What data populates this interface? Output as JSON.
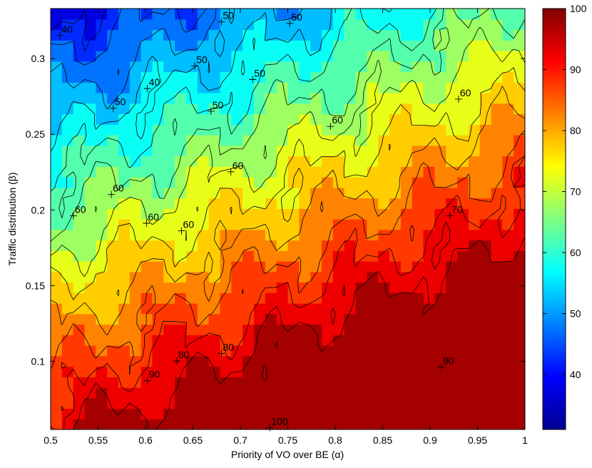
{
  "chart_data": {
    "type": "heatmap",
    "subtype": "filled-contour",
    "colormap": "jet",
    "xlabel": "Priority of VO over BE (α)",
    "ylabel": "Traffic distribution (β)",
    "xlim": [
      0.5,
      1.0
    ],
    "ylim": [
      0.055,
      0.333
    ],
    "x_ticks": [
      "0.5",
      "0.55",
      "0.6",
      "0.65",
      "0.7",
      "0.75",
      "0.8",
      "0.85",
      "0.9",
      "0.95",
      "1"
    ],
    "y_ticks": [
      "0.1",
      "0.15",
      "0.2",
      "0.25",
      "0.3"
    ],
    "colorbar": {
      "min": 31,
      "max": 100,
      "ticks": [
        "40",
        "50",
        "60",
        "70",
        "80",
        "90",
        "100"
      ]
    },
    "contour_levels": [
      35,
      40,
      45,
      50,
      55,
      60,
      65,
      70,
      75,
      80,
      85,
      90,
      95,
      100
    ],
    "contour_labels": [
      {
        "x": 0.51,
        "y": 0.318,
        "value": "40"
      },
      {
        "x": 0.602,
        "y": 0.283,
        "value": "40"
      },
      {
        "x": 0.68,
        "y": 0.327,
        "value": "50"
      },
      {
        "x": 0.752,
        "y": 0.326,
        "value": "50"
      },
      {
        "x": 0.652,
        "y": 0.298,
        "value": "50"
      },
      {
        "x": 0.713,
        "y": 0.289,
        "value": "50"
      },
      {
        "x": 0.566,
        "y": 0.27,
        "value": "50"
      },
      {
        "x": 0.669,
        "y": 0.268,
        "value": "50"
      },
      {
        "x": 0.795,
        "y": 0.258,
        "value": "60"
      },
      {
        "x": 0.93,
        "y": 0.276,
        "value": "60"
      },
      {
        "x": 0.69,
        "y": 0.228,
        "value": "60"
      },
      {
        "x": 0.564,
        "y": 0.213,
        "value": "60"
      },
      {
        "x": 0.524,
        "y": 0.199,
        "value": "60"
      },
      {
        "x": 0.601,
        "y": 0.194,
        "value": "60"
      },
      {
        "x": 0.638,
        "y": 0.189,
        "value": "60"
      },
      {
        "x": 0.921,
        "y": 0.199,
        "value": "70"
      },
      {
        "x": 0.633,
        "y": 0.103,
        "value": "80"
      },
      {
        "x": 0.68,
        "y": 0.108,
        "value": "80"
      },
      {
        "x": 0.602,
        "y": 0.09,
        "value": "90"
      },
      {
        "x": 0.912,
        "y": 0.099,
        "value": "90"
      },
      {
        "x": 0.731,
        "y": 0.059,
        "value": "100"
      }
    ],
    "trend": "value increases as β decreases and as α increases; ~40 at top-left (α=0.5, β=0.33) to ~100 at bottom-right (α=0.85-1, β≈0.06)"
  }
}
